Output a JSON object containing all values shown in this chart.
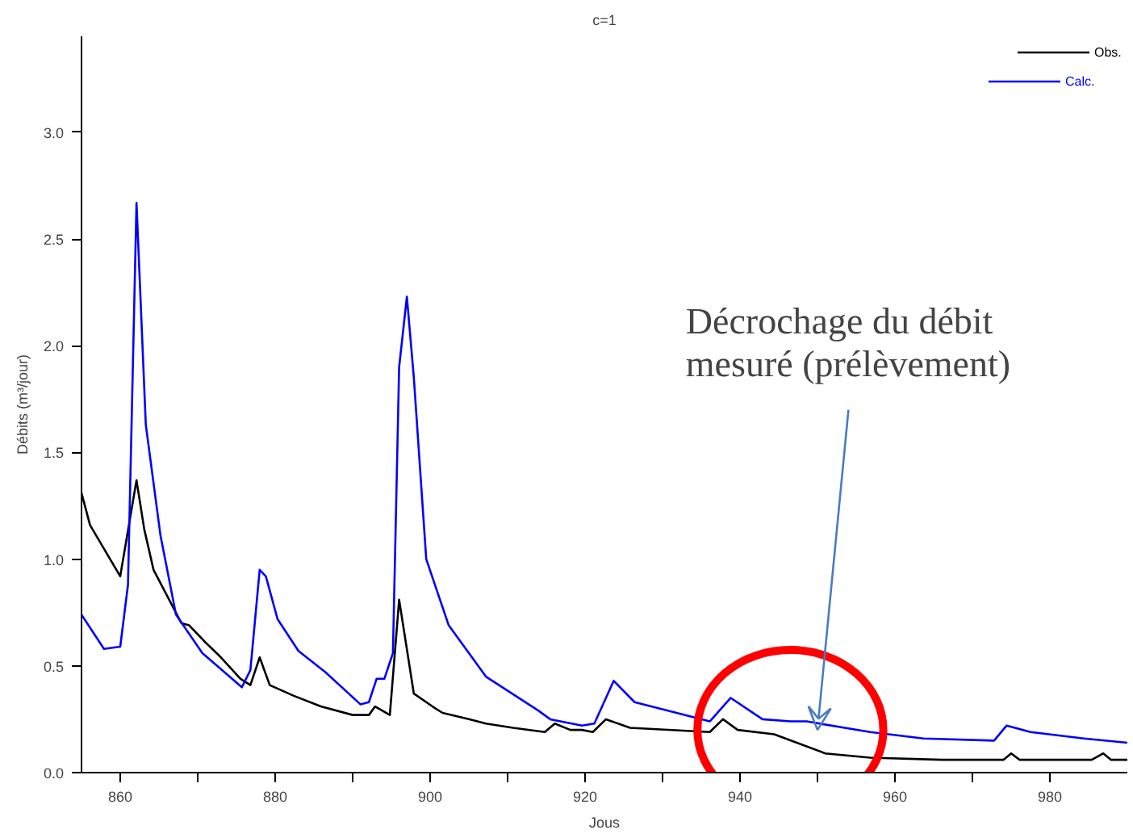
{
  "chart_data": {
    "type": "line",
    "title": "c=1",
    "xlabel": "Jous",
    "ylabel": "Débits (m³/jour)",
    "xlim": [
      855,
      990
    ],
    "ylim": [
      0,
      3.45
    ],
    "xticks": [
      {
        "value": 860,
        "label": "860"
      },
      {
        "value": 870,
        "label": null
      },
      {
        "value": 880,
        "label": "880"
      },
      {
        "value": 890,
        "label": null
      },
      {
        "value": 900,
        "label": "900"
      },
      {
        "value": 910,
        "label": null
      },
      {
        "value": 920,
        "label": "920"
      },
      {
        "value": 930,
        "label": null
      },
      {
        "value": 940,
        "label": "940"
      },
      {
        "value": 950,
        "label": null
      },
      {
        "value": 960,
        "label": "960"
      },
      {
        "value": 970,
        "label": null
      },
      {
        "value": 980,
        "label": "980"
      }
    ],
    "yticks": [
      {
        "value": 0,
        "label": "0.0"
      },
      {
        "value": 0.5,
        "label": "0.5"
      },
      {
        "value": 1,
        "label": "1.0"
      },
      {
        "value": 1.5,
        "label": "1.5"
      },
      {
        "value": 2,
        "label": "2.0"
      },
      {
        "value": 2.5,
        "label": "2.5"
      },
      {
        "value": 3,
        "label": "3.0"
      }
    ],
    "grid": false,
    "legend": "top right",
    "marker": "none",
    "line_style": "solid",
    "series": [
      {
        "name": "Obs.",
        "color": "#000000",
        "x": [
          855.0,
          856.1,
          860,
          862.1,
          863.1,
          864.3,
          867.9,
          868.9,
          871.0,
          873.0,
          875.5,
          876.8,
          878.0,
          879.3,
          882.4,
          885.9,
          890.0,
          892.1,
          892.9,
          894.8,
          896.0,
          897.9,
          900.3,
          901.6,
          905.1,
          907.2,
          910.7,
          914.8,
          916.1,
          918.1,
          919.6,
          921.0,
          922.7,
          925.8,
          936.1,
          937.8,
          939.7,
          944.4,
          951.0,
          956.8,
          966.1,
          974.0,
          975.0,
          976.1,
          985.4,
          986.9,
          987.9,
          990
        ],
        "values": [
          1.31,
          1.16,
          0.92,
          1.37,
          1.14,
          0.95,
          0.7,
          0.69,
          0.61,
          0.54,
          0.44,
          0.41,
          0.54,
          0.41,
          0.36,
          0.31,
          0.27,
          0.27,
          0.31,
          0.27,
          0.81,
          0.37,
          0.31,
          0.28,
          0.25,
          0.23,
          0.21,
          0.19,
          0.23,
          0.2,
          0.2,
          0.19,
          0.25,
          0.21,
          0.19,
          0.25,
          0.2,
          0.18,
          0.09,
          0.07,
          0.06,
          0.06,
          0.09,
          0.06,
          0.06,
          0.09,
          0.06,
          0.06
        ]
      },
      {
        "name": "Calc.",
        "color": "#0000ff",
        "x": [
          855.0,
          857.9,
          860,
          861.0,
          862.1,
          863.3,
          865.2,
          867.2,
          870.6,
          875.7,
          876.8,
          878.0,
          878.8,
          880.3,
          883.0,
          886.5,
          891.0,
          892.1,
          893.1,
          894.1,
          895.2,
          896.0,
          897.0,
          897.9,
          899.5,
          902.4,
          907.2,
          914.0,
          915.5,
          919.6,
          921.2,
          923.7,
          926.4,
          936.1,
          938.8,
          942.9,
          946.5,
          948.6,
          956.8,
          963.7,
          972.8,
          974.4,
          977.5,
          984.4,
          990
        ],
        "values": [
          0.74,
          0.58,
          0.59,
          0.88,
          2.67,
          1.63,
          1.11,
          0.74,
          0.56,
          0.4,
          0.48,
          0.95,
          0.92,
          0.72,
          0.57,
          0.47,
          0.32,
          0.33,
          0.44,
          0.44,
          0.56,
          1.9,
          2.23,
          1.85,
          1.0,
          0.69,
          0.45,
          0.29,
          0.25,
          0.22,
          0.23,
          0.43,
          0.33,
          0.24,
          0.35,
          0.25,
          0.24,
          0.24,
          0.19,
          0.16,
          0.15,
          0.22,
          0.19,
          0.16,
          0.14
        ]
      }
    ],
    "annotations": [
      {
        "text": "Décrochage du débit mesuré (prélèvement)",
        "x": 950,
        "y": 0.2
      }
    ]
  }
}
